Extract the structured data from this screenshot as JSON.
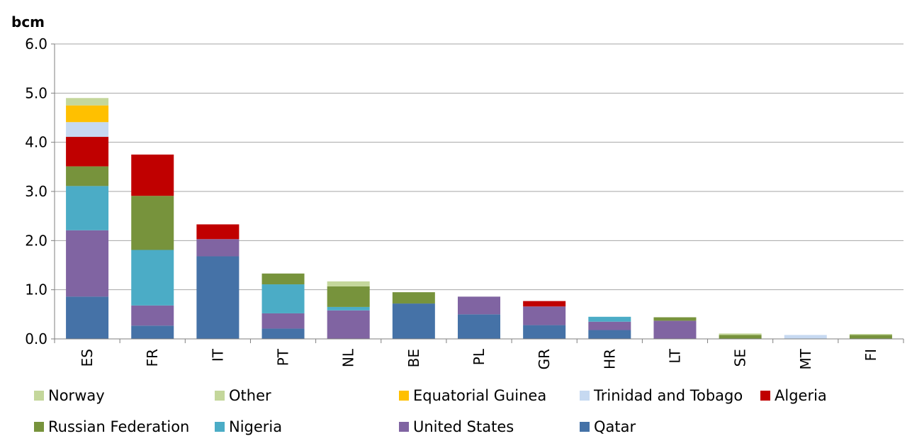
{
  "chart_data": {
    "type": "bar",
    "stacked": true,
    "ylabel": "bcm",
    "ylim": [
      0,
      6
    ],
    "yticks": [
      "0.0",
      "1.0",
      "2.0",
      "3.0",
      "4.0",
      "5.0",
      "6.0"
    ],
    "grid": true,
    "legend_position": "bottom",
    "categories": [
      "ES",
      "FR",
      "IT",
      "PT",
      "NL",
      "BE",
      "PL",
      "GR",
      "HR",
      "LT",
      "SE",
      "MT",
      "FI"
    ],
    "series": [
      {
        "name": "Qatar",
        "color": "#4572A7",
        "values": [
          0.86,
          0.27,
          1.68,
          0.21,
          0,
          0.72,
          0.5,
          0.28,
          0.18,
          0,
          0,
          0,
          0
        ]
      },
      {
        "name": "United States",
        "color": "#8064A2",
        "values": [
          1.35,
          0.41,
          0.35,
          0.31,
          0.58,
          0,
          0.36,
          0.38,
          0.17,
          0.37,
          0,
          0,
          0
        ]
      },
      {
        "name": "Nigeria",
        "color": "#4BACC6",
        "values": [
          0.9,
          1.13,
          0,
          0.59,
          0.07,
          0,
          0,
          0,
          0.1,
          0,
          0,
          0,
          0
        ]
      },
      {
        "name": "Russian Federation",
        "color": "#77933C",
        "values": [
          0.4,
          1.1,
          0,
          0.22,
          0.42,
          0.23,
          0,
          0,
          0,
          0.07,
          0.08,
          0,
          0.08
        ]
      },
      {
        "name": "Algeria",
        "color": "#C00000",
        "values": [
          0.6,
          0.84,
          0.3,
          0,
          0,
          0,
          0,
          0.11,
          0,
          0,
          0,
          0,
          0
        ]
      },
      {
        "name": "Trinidad and Tobago",
        "color": "#C6D9F1",
        "values": [
          0.3,
          0,
          0,
          0,
          0,
          0,
          0,
          0,
          0,
          0,
          0,
          0.08,
          0
        ]
      },
      {
        "name": "Equatorial Guinea",
        "color": "#FFC000",
        "values": [
          0.34,
          0,
          0,
          0,
          0,
          0,
          0,
          0,
          0,
          0,
          0,
          0,
          0
        ]
      },
      {
        "name": "Other",
        "color": "#C4D79B",
        "values": [
          0.15,
          0,
          0,
          0,
          0.1,
          0,
          0,
          0,
          0,
          0,
          0.03,
          0,
          0.02
        ]
      },
      {
        "name": "Norway",
        "color": "#C4D79B",
        "values": [
          0,
          0,
          0,
          0,
          0,
          0,
          0,
          0,
          0,
          0,
          0,
          0,
          0
        ]
      }
    ],
    "legend_order": [
      "Norway",
      "Other",
      "Equatorial Guinea",
      "Trinidad and Tobago",
      "Algeria",
      "Russian Federation",
      "Nigeria",
      "United States",
      "Qatar"
    ]
  }
}
